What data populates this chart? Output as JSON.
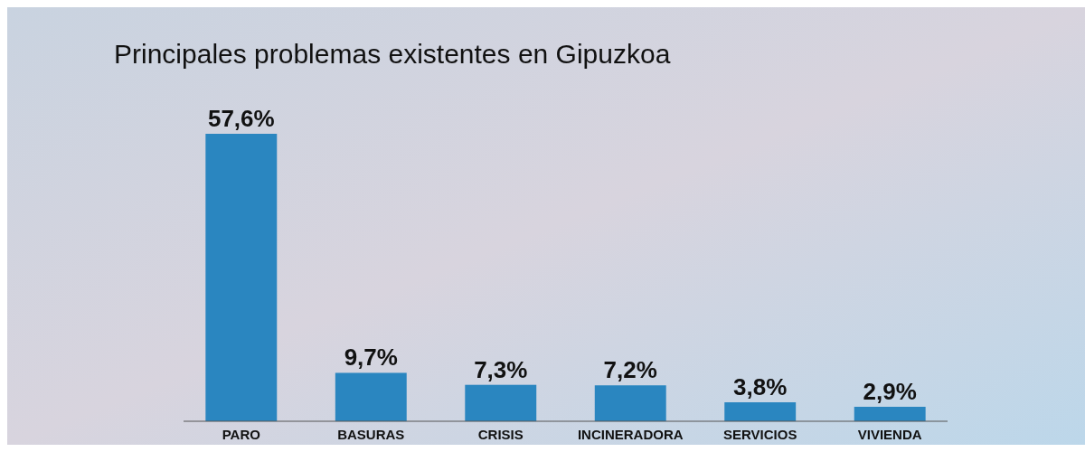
{
  "chart_data": {
    "type": "bar",
    "title": "Principales problemas existentes en Gipuzkoa",
    "categories": [
      "PARO",
      "BASURAS",
      "CRISIS",
      "INCINERADORA",
      "SERVICIOS",
      "VIVIENDA"
    ],
    "values": [
      57.6,
      9.7,
      7.3,
      7.2,
      3.8,
      2.9
    ],
    "value_labels": [
      "57,6%",
      "9,7%",
      "7,3%",
      "7,2%",
      "3,8%",
      "2,9%"
    ],
    "color": "#2a86c0"
  }
}
